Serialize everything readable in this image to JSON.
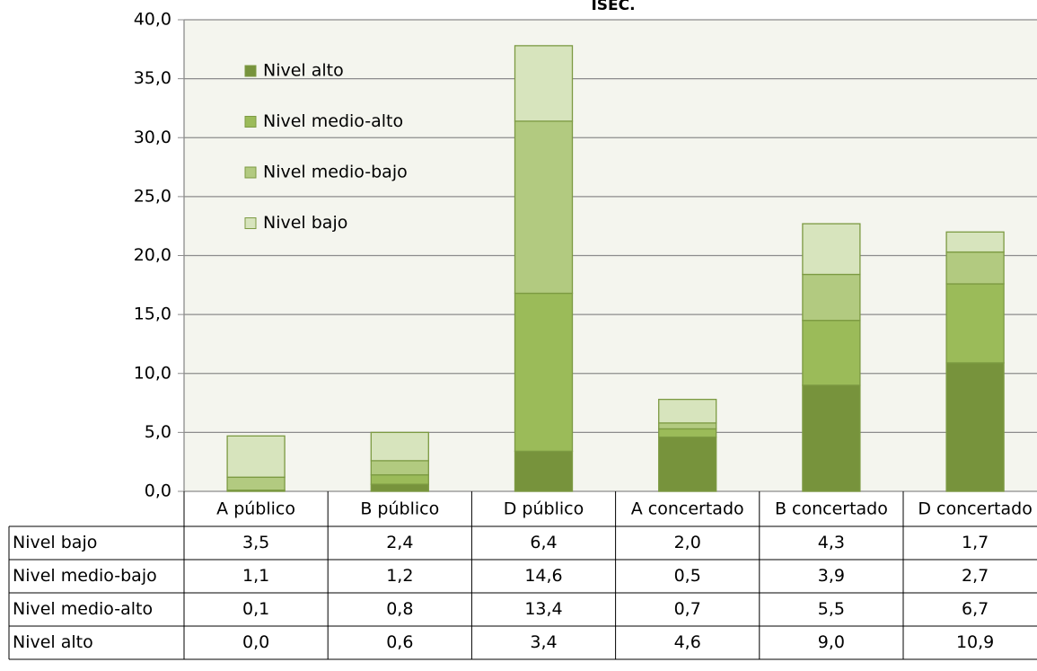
{
  "chart_data": {
    "type": "bar",
    "stacked": true,
    "title": "ISEC.",
    "categories": [
      "A público",
      "B público",
      "D público",
      "A concertado",
      "B concertado",
      "D concertado"
    ],
    "series": [
      {
        "name": "Nivel alto",
        "color": "#77933c",
        "values": [
          0.0,
          0.6,
          3.4,
          4.6,
          9.0,
          10.9
        ],
        "value_labels": [
          "0,0",
          "0,6",
          "3,4",
          "4,6",
          "9,0",
          "10,9"
        ]
      },
      {
        "name": "Nivel medio-alto",
        "color": "#9bbb59",
        "values": [
          0.1,
          0.8,
          13.4,
          0.7,
          5.5,
          6.7
        ],
        "value_labels": [
          "0,1",
          "0,8",
          "13,4",
          "0,7",
          "5,5",
          "6,7"
        ]
      },
      {
        "name": "Nivel medio-bajo",
        "color": "#b2ca80",
        "values": [
          1.1,
          1.2,
          14.6,
          0.5,
          3.9,
          2.7
        ],
        "value_labels": [
          "1,1",
          "1,2",
          "14,6",
          "0,5",
          "3,9",
          "2,7"
        ]
      },
      {
        "name": "Nivel bajo",
        "color": "#d7e4bd",
        "values": [
          3.5,
          2.4,
          6.4,
          2.0,
          4.3,
          1.7
        ],
        "value_labels": [
          "3,5",
          "2,4",
          "6,4",
          "2,0",
          "4,3",
          "1,7"
        ]
      }
    ],
    "ylim": [
      0,
      40
    ],
    "yticks": [
      {
        "value": 0,
        "label": "0,0"
      },
      {
        "value": 5,
        "label": "5,0"
      },
      {
        "value": 10,
        "label": "10,0"
      },
      {
        "value": 15,
        "label": "15,0"
      },
      {
        "value": 20,
        "label": "20,0"
      },
      {
        "value": 25,
        "label": "25,0"
      },
      {
        "value": 30,
        "label": "30,0"
      },
      {
        "value": 35,
        "label": "35,0"
      },
      {
        "value": 40,
        "label": "40,0"
      }
    ],
    "grid": true,
    "legend": "upper left",
    "data_table": true
  }
}
